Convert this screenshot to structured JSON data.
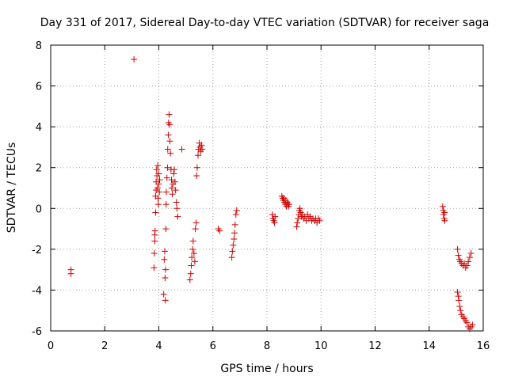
{
  "chart_data": {
    "type": "scatter",
    "title": "Day 331 of 2017, Sidereal Day-to-day VTEC variation (SDTVAR) for receiver saga",
    "xlabel": "GPS time / hours",
    "ylabel": "SDTVAR / TECUs",
    "xlim": [
      0,
      16
    ],
    "ylim": [
      -6,
      8
    ],
    "xticks": [
      0,
      2,
      4,
      6,
      8,
      10,
      12,
      14,
      16
    ],
    "yticks": [
      -6,
      -4,
      -2,
      0,
      2,
      4,
      6,
      8
    ],
    "grid": true,
    "marker": "plus",
    "marker_color": "#cc0000",
    "series": [
      {
        "points": [
          [
            0.75,
            -3.0
          ],
          [
            0.75,
            -3.2
          ],
          [
            3.08,
            7.3
          ],
          [
            3.82,
            -2.9
          ],
          [
            3.83,
            -2.2
          ],
          [
            3.85,
            -1.6
          ],
          [
            3.85,
            -1.3
          ],
          [
            3.86,
            -1.1
          ],
          [
            3.88,
            -0.2
          ],
          [
            3.88,
            0.6
          ],
          [
            3.9,
            0.9
          ],
          [
            3.9,
            1.3
          ],
          [
            3.92,
            1.9
          ],
          [
            3.93,
            1.6
          ],
          [
            3.95,
            1.0
          ],
          [
            3.96,
            2.1
          ],
          [
            3.97,
            0.5
          ],
          [
            3.98,
            0.2
          ],
          [
            4.0,
            1.2
          ],
          [
            4.0,
            1.7
          ],
          [
            4.02,
            0.8
          ],
          [
            4.03,
            1.4
          ],
          [
            4.18,
            -4.2
          ],
          [
            4.2,
            -2.5
          ],
          [
            4.22,
            -2.1
          ],
          [
            4.23,
            -3.4
          ],
          [
            4.24,
            -4.5
          ],
          [
            4.25,
            -3.0
          ],
          [
            4.26,
            -1.0
          ],
          [
            4.27,
            0.2
          ],
          [
            4.28,
            0.8
          ],
          [
            4.3,
            1.5
          ],
          [
            4.32,
            2.0
          ],
          [
            4.33,
            2.9
          ],
          [
            4.35,
            3.6
          ],
          [
            4.36,
            4.2
          ],
          [
            4.38,
            4.6
          ],
          [
            4.4,
            4.1
          ],
          [
            4.41,
            3.3
          ],
          [
            4.43,
            2.7
          ],
          [
            4.45,
            1.9
          ],
          [
            4.47,
            1.4
          ],
          [
            4.48,
            1.0
          ],
          [
            4.5,
            0.7
          ],
          [
            4.52,
            1.2
          ],
          [
            4.55,
            1.7
          ],
          [
            4.57,
            1.9
          ],
          [
            4.6,
            1.3
          ],
          [
            4.62,
            0.9
          ],
          [
            4.65,
            0.3
          ],
          [
            4.67,
            0.0
          ],
          [
            4.7,
            -0.4
          ],
          [
            4.85,
            2.9
          ],
          [
            5.15,
            -3.5
          ],
          [
            5.18,
            -3.2
          ],
          [
            5.2,
            -2.8
          ],
          [
            5.22,
            -2.4
          ],
          [
            5.25,
            -2.0
          ],
          [
            5.27,
            -1.6
          ],
          [
            5.3,
            -2.2
          ],
          [
            5.33,
            -2.6
          ],
          [
            5.35,
            -1.0
          ],
          [
            5.38,
            -0.7
          ],
          [
            5.4,
            1.6
          ],
          [
            5.42,
            2.0
          ],
          [
            5.45,
            2.6
          ],
          [
            5.47,
            2.9
          ],
          [
            5.5,
            3.2
          ],
          [
            5.52,
            3.0
          ],
          [
            5.55,
            2.8
          ],
          [
            5.58,
            3.1
          ],
          [
            5.6,
            2.9
          ],
          [
            6.2,
            -1.0
          ],
          [
            6.25,
            -1.1
          ],
          [
            6.7,
            -2.4
          ],
          [
            6.72,
            -2.1
          ],
          [
            6.75,
            -1.8
          ],
          [
            6.78,
            -1.5
          ],
          [
            6.8,
            -1.2
          ],
          [
            6.82,
            -0.8
          ],
          [
            6.85,
            -0.3
          ],
          [
            6.88,
            -0.1
          ],
          [
            8.2,
            -0.3
          ],
          [
            8.22,
            -0.5
          ],
          [
            8.25,
            -0.6
          ],
          [
            8.28,
            -0.7
          ],
          [
            8.3,
            -0.4
          ],
          [
            8.55,
            0.6
          ],
          [
            8.58,
            0.5
          ],
          [
            8.6,
            0.4
          ],
          [
            8.63,
            0.5
          ],
          [
            8.65,
            0.3
          ],
          [
            8.68,
            0.2
          ],
          [
            8.7,
            0.4
          ],
          [
            8.72,
            0.1
          ],
          [
            8.75,
            0.3
          ],
          [
            8.78,
            0.2
          ],
          [
            8.8,
            0.1
          ],
          [
            8.82,
            0.2
          ],
          [
            9.1,
            -0.9
          ],
          [
            9.12,
            -0.7
          ],
          [
            9.15,
            -0.5
          ],
          [
            9.18,
            -0.3
          ],
          [
            9.2,
            -0.1
          ],
          [
            9.22,
            0.0
          ],
          [
            9.25,
            -0.2
          ],
          [
            9.28,
            -0.4
          ],
          [
            9.3,
            -0.3
          ],
          [
            9.35,
            -0.5
          ],
          [
            9.4,
            -0.4
          ],
          [
            9.45,
            -0.6
          ],
          [
            9.5,
            -0.3
          ],
          [
            9.55,
            -0.5
          ],
          [
            9.6,
            -0.4
          ],
          [
            9.65,
            -0.6
          ],
          [
            9.7,
            -0.5
          ],
          [
            9.75,
            -0.6
          ],
          [
            9.8,
            -0.5
          ],
          [
            9.85,
            -0.7
          ],
          [
            9.9,
            -0.5
          ],
          [
            9.95,
            -0.6
          ],
          [
            14.5,
            0.1
          ],
          [
            14.52,
            -0.1
          ],
          [
            14.53,
            -0.3
          ],
          [
            14.55,
            -0.5
          ],
          [
            14.57,
            -0.2
          ],
          [
            14.58,
            -0.6
          ],
          [
            15.05,
            -2.0
          ],
          [
            15.08,
            -2.3
          ],
          [
            15.12,
            -2.5
          ],
          [
            15.15,
            -2.6
          ],
          [
            15.2,
            -2.7
          ],
          [
            15.25,
            -2.8
          ],
          [
            15.3,
            -2.7
          ],
          [
            15.35,
            -2.9
          ],
          [
            15.4,
            -2.8
          ],
          [
            15.45,
            -2.6
          ],
          [
            15.5,
            -2.4
          ],
          [
            15.55,
            -2.2
          ],
          [
            15.05,
            -4.1
          ],
          [
            15.08,
            -4.3
          ],
          [
            15.1,
            -4.5
          ],
          [
            15.13,
            -4.8
          ],
          [
            15.16,
            -5.0
          ],
          [
            15.2,
            -5.2
          ],
          [
            15.25,
            -5.3
          ],
          [
            15.3,
            -5.4
          ],
          [
            15.35,
            -5.5
          ],
          [
            15.4,
            -5.6
          ],
          [
            15.45,
            -5.8
          ],
          [
            15.5,
            -5.9
          ],
          [
            15.55,
            -5.8
          ],
          [
            15.6,
            -5.7
          ]
        ]
      }
    ]
  }
}
